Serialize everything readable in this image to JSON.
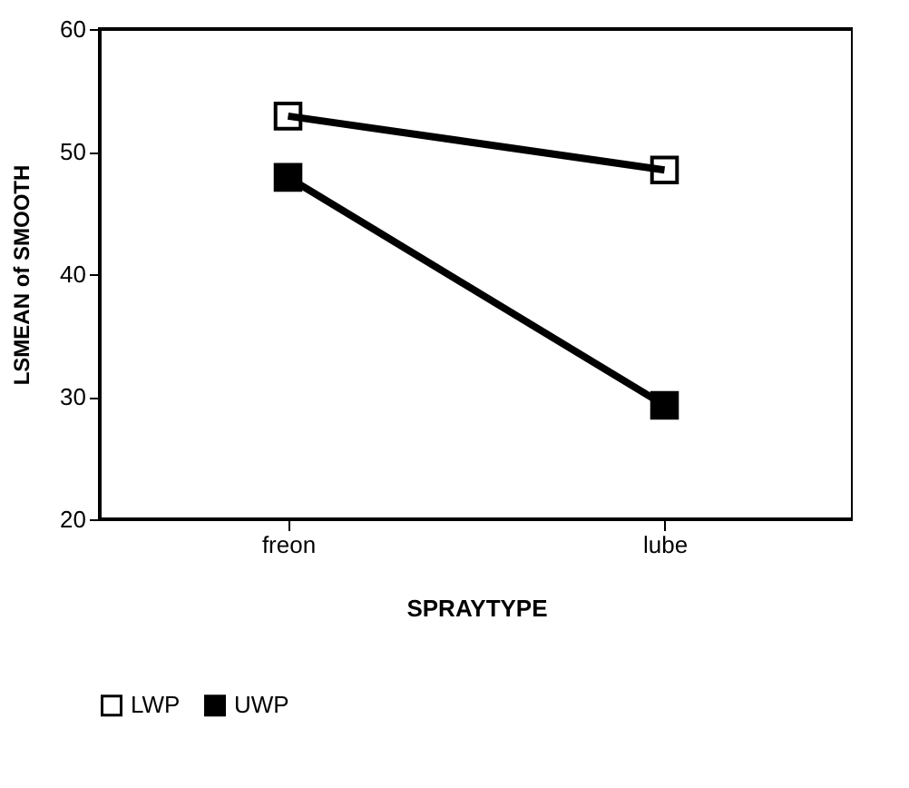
{
  "chart_data": {
    "type": "line",
    "xlabel": "SPRAYTYPE",
    "ylabel": "LSMEAN of SMOOTH",
    "categories": [
      "freon",
      "lube"
    ],
    "series": [
      {
        "name": "LWP",
        "color": "#000000",
        "values": [
          52.9,
          48.5
        ]
      },
      {
        "name": "UWP",
        "color": "#000000",
        "values": [
          47.9,
          29.3
        ]
      }
    ],
    "ylim": [
      20,
      60
    ],
    "yticks": [
      20,
      30,
      40,
      50,
      60
    ],
    "grid": false,
    "legend": "bottom",
    "marker": "square",
    "line_style": "solid"
  }
}
